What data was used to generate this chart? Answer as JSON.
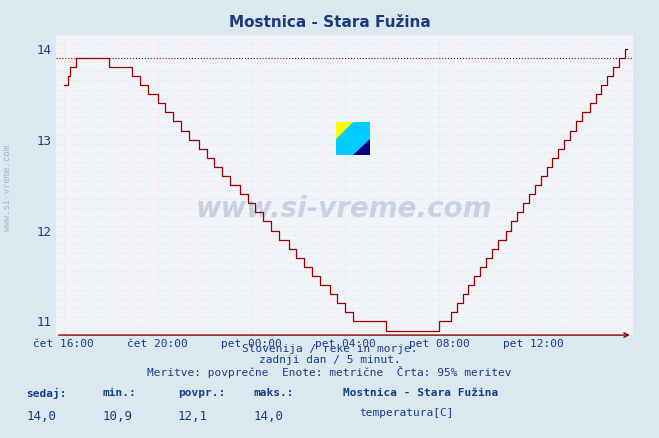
{
  "title": "Mostnica - Stara Fužina",
  "title_color": "#1a3a7a",
  "bg_color": "#dce8f0",
  "plot_bg_color": "#f0f4f8",
  "line_color": "#990000",
  "dashed_line_color": "#990000",
  "dashed_line_value": 13.9,
  "axis_color": "#880000",
  "tick_color": "#1a3a8a",
  "ylim": [
    10.85,
    14.15
  ],
  "yticks": [
    11,
    12,
    13,
    14
  ],
  "xtick_labels": [
    "čet 16:00",
    "čet 20:00",
    "pet 00:00",
    "pet 04:00",
    "pet 08:00",
    "pet 12:00"
  ],
  "xtick_positions": [
    0,
    48,
    96,
    144,
    192,
    240
  ],
  "total_points": 289,
  "watermark_text": "www.si-vreme.com",
  "watermark_color": "#1a3a8a",
  "watermark_alpha": 0.18,
  "footer_line1": "Slovenija / reke in morje.",
  "footer_line2": "zadnji dan / 5 minut.",
  "footer_line3": "Meritve: povprečne  Enote: metrične  Črta: 95% meritev",
  "footer_color": "#1a3a8a",
  "stat_labels": [
    "sedaj:",
    "min.:",
    "povpr.:",
    "maks.:"
  ],
  "stat_values": [
    "14,0",
    "10,9",
    "12,1",
    "14,0"
  ],
  "legend_station": "Mostnica - Stara Fužina",
  "legend_label": "temperatura[C]",
  "legend_color": "#cc0000",
  "sidebar_text": "www.si-vreme.com",
  "sidebar_color": "#1a3a8a",
  "sidebar_alpha": 0.3,
  "grid_minor_color": "#e8b8b8",
  "grid_major_color": "#f8d8d8",
  "grid_white_color": "#f0f0ff"
}
